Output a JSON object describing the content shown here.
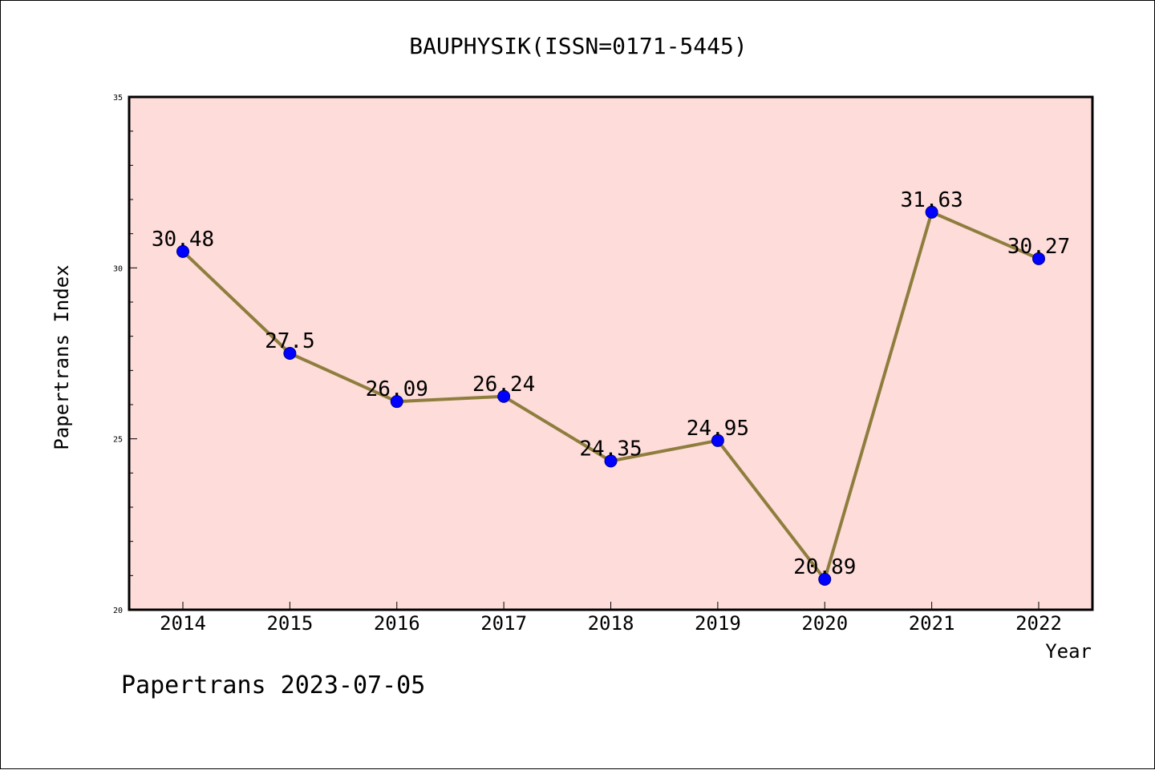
{
  "chart_data": {
    "type": "line",
    "title": "BAUPHYSIK(ISSN=0171-5445)",
    "xlabel": "Year",
    "ylabel": "Papertrans Index",
    "ylim": [
      20,
      35
    ],
    "yticks": [
      "20",
      "25",
      "30",
      "35"
    ],
    "categories": [
      "2014",
      "2015",
      "2016",
      "2017",
      "2018",
      "2019",
      "2020",
      "2021",
      "2022"
    ],
    "values": [
      30.48,
      27.5,
      26.09,
      26.24,
      24.35,
      24.95,
      20.89,
      31.63,
      30.27
    ],
    "data_labels": [
      "30.48",
      "27.5",
      "26.09",
      "26.24",
      "24.35",
      "24.95",
      "20.89",
      "31.63",
      "30.27"
    ],
    "grid": false,
    "legend": "none"
  },
  "footer": "Papertrans 2023-07-05",
  "colors": {
    "plot_background": "#fddcd9",
    "line": "#8f7d3e",
    "marker": "#0000ff",
    "marker_edge": "#00008b"
  }
}
